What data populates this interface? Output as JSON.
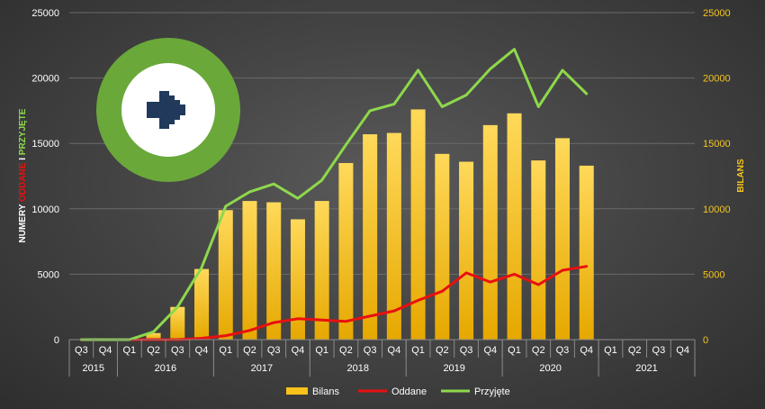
{
  "chart_data": {
    "type": "bar+line",
    "left_axis": {
      "title_parts": [
        {
          "text": "NUMERY ",
          "color": "#ffffff"
        },
        {
          "text": "ODDANE",
          "color": "#e81010"
        },
        {
          "text": " I ",
          "color": "#ffffff"
        },
        {
          "text": "PRZYJĘTE",
          "color": "#8ed84c"
        }
      ],
      "ylim": [
        0,
        25000
      ],
      "ticks": [
        "0",
        "5000",
        "10000",
        "15000",
        "20000",
        "25000"
      ]
    },
    "right_axis": {
      "title": "BILANS",
      "ylim": [
        0,
        25000
      ],
      "ticks": [
        "0",
        "5000",
        "10000",
        "15000",
        "20000",
        "25000"
      ]
    },
    "quarters": [
      "Q3",
      "Q4",
      "Q1",
      "Q2",
      "Q3",
      "Q4",
      "Q1",
      "Q2",
      "Q3",
      "Q4",
      "Q1",
      "Q2",
      "Q3",
      "Q4",
      "Q1",
      "Q2",
      "Q3",
      "Q4",
      "Q1",
      "Q2",
      "Q3",
      "Q4",
      "Q1",
      "Q2",
      "Q3",
      "Q4"
    ],
    "years": [
      {
        "label": "2015",
        "count": 2
      },
      {
        "label": "2016",
        "count": 4
      },
      {
        "label": "2017",
        "count": 4
      },
      {
        "label": "2018",
        "count": 4
      },
      {
        "label": "2019",
        "count": 4
      },
      {
        "label": "2020",
        "count": 4
      },
      {
        "label": "2021",
        "count": 4
      }
    ],
    "series": [
      {
        "name": "Bilans",
        "kind": "bar",
        "axis": "right",
        "color": "#f7c21a",
        "values": [
          0,
          0,
          0,
          500,
          2500,
          5400,
          9900,
          10600,
          10500,
          9200,
          10600,
          13500,
          15700,
          15800,
          17600,
          14200,
          13600,
          16400,
          17300,
          13700,
          15400,
          13300,
          null,
          null,
          null,
          null
        ]
      },
      {
        "name": "Oddane",
        "kind": "line",
        "axis": "left",
        "color": "#e81010",
        "values": [
          0,
          0,
          0,
          0,
          0,
          100,
          300,
          700,
          1300,
          1600,
          1500,
          1400,
          1800,
          2200,
          3000,
          3700,
          5100,
          4400,
          5000,
          4200,
          5300,
          5600,
          null,
          null,
          null,
          null
        ]
      },
      {
        "name": "Przyjęte",
        "kind": "line",
        "axis": "left",
        "color": "#8ed84c",
        "values": [
          0,
          0,
          0,
          600,
          2500,
          5500,
          10200,
          11300,
          11900,
          10800,
          12200,
          14900,
          17500,
          18000,
          20600,
          17800,
          18700,
          20700,
          22200,
          17800,
          20600,
          18800,
          null,
          null,
          null,
          null
        ]
      }
    ],
    "grid": true,
    "legend_position": "bottom",
    "colors": {
      "grid": "#6a6a6a",
      "axis_line": "#8a8a8a",
      "logo_ring": "#6aa83a",
      "logo_arrow": "#213a5c"
    }
  },
  "logo": {
    "name": "arrow-right-logo"
  }
}
